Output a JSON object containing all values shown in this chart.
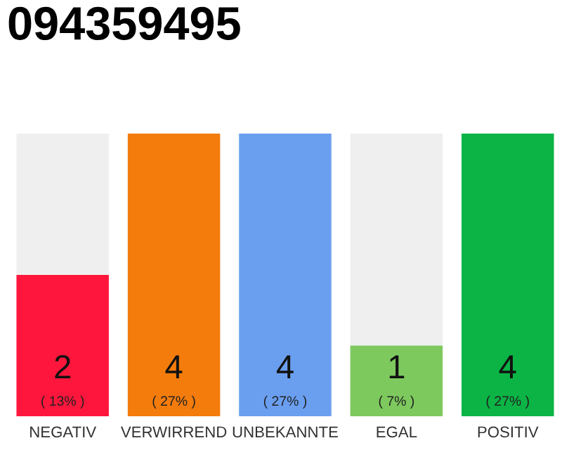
{
  "chart_data": {
    "type": "bar",
    "title": "094359495",
    "categories": [
      "NEGATIV",
      "VERWIRREND",
      "UNBEKANNTE",
      "EGAL",
      "POSITIV"
    ],
    "values": [
      2,
      4,
      4,
      1,
      4
    ],
    "colors": [
      "#ff163c",
      "#f47c0c",
      "#6a9ff0",
      "#7dc95e",
      "#0bb445"
    ],
    "value_labels": [
      "2\n( 13% )",
      "4\n( 27% )",
      "4\n( 27% )",
      "1\n( 7% )",
      "4\n( 27% )"
    ],
    "grid": false,
    "legend": false
  }
}
